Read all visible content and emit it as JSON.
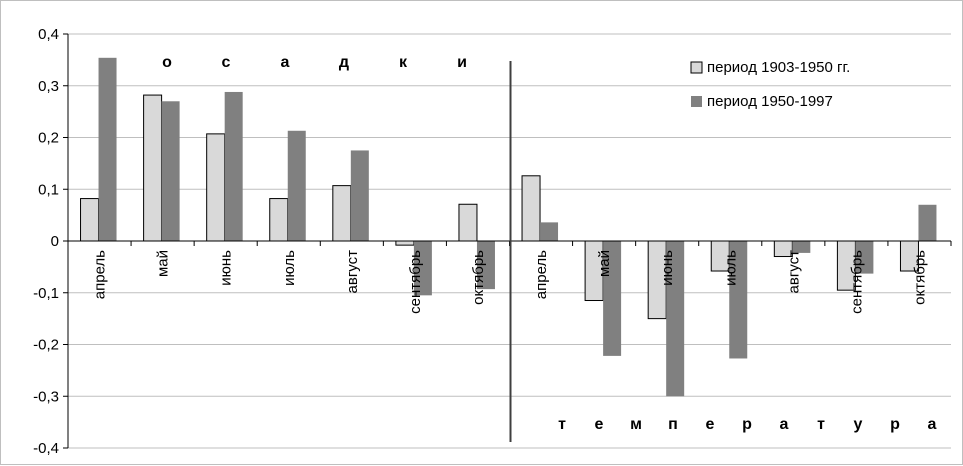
{
  "chart_data": {
    "type": "bar",
    "categories": [
      "апрель",
      "май",
      "июнь",
      "июль",
      "август",
      "сентябрь",
      "октябрь",
      "апрель",
      "май",
      "июнь",
      "июль",
      "август",
      "сентябрь",
      "октябрь"
    ],
    "series": [
      {
        "name": "период 1903-1950 гг.",
        "color": "#d9d9d9",
        "values": [
          0.082,
          0.282,
          0.207,
          0.082,
          0.107,
          -0.008,
          0.071,
          0.126,
          -0.115,
          -0.15,
          -0.058,
          -0.03,
          -0.095,
          -0.058
        ]
      },
      {
        "name": "период 1950-1997",
        "color": "#808080",
        "values": [
          0.354,
          0.27,
          0.288,
          0.213,
          0.175,
          -0.105,
          -0.093,
          0.036,
          -0.222,
          -0.3,
          -0.227,
          -0.023,
          -0.063,
          0.07
        ]
      }
    ],
    "ylim": [
      -0.4,
      0.4
    ],
    "yticks": [
      "0,4",
      "0,3",
      "0,2",
      "0,1",
      "0",
      "-0,1",
      "-0,2",
      "-0,3",
      "-0,4"
    ],
    "annotations": {
      "left_group": [
        "о",
        "с",
        "а",
        "д",
        "к",
        "и"
      ],
      "right_group": [
        "т",
        "е",
        "м",
        "п",
        "е",
        "р",
        "а",
        "т",
        "у",
        "р",
        "а"
      ]
    },
    "legend_position": "top-right",
    "grid": true,
    "divider": true
  }
}
